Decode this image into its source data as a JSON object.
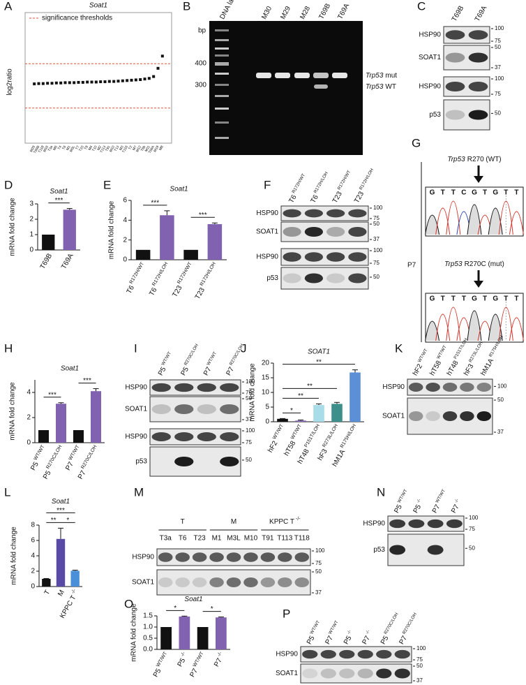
{
  "panel_labels": [
    "A",
    "B",
    "C",
    "D",
    "E",
    "F",
    "G",
    "H",
    "I",
    "J",
    "K",
    "L",
    "M",
    "N",
    "O",
    "P"
  ],
  "chart_data": [
    {
      "type": "scatter",
      "title": "Soat1",
      "y_label": "log2ratio",
      "legend": "significance thresholds",
      "thresholds": [
        0.6,
        -0.85
      ],
      "threshold_color": "#e0523a",
      "color": "#111111",
      "ylim": [
        -2,
        2
      ],
      "categories": [
        "M29",
        "T69B",
        "T118",
        "M16",
        "T3a",
        "M6",
        "T4",
        "T6",
        "M1",
        "M3L",
        "T7",
        "T23",
        "T9",
        "M4",
        "T10",
        "M2",
        "T113",
        "T91",
        "M10",
        "T13",
        "M3",
        "T116",
        "T2",
        "M7",
        "M12",
        "T6b",
        "M11",
        "T69A",
        "M19",
        "M8"
      ],
      "values": [
        -0.06,
        -0.05,
        -0.05,
        -0.04,
        -0.04,
        -0.03,
        -0.03,
        -0.02,
        -0.02,
        -0.02,
        -0.01,
        -0.01,
        0,
        0,
        0,
        0.01,
        0.01,
        0.02,
        0.02,
        0.03,
        0.04,
        0.05,
        0.06,
        0.07,
        0.08,
        0.1,
        0.12,
        0.18,
        0.45,
        0.85
      ]
    },
    {
      "type": "bar",
      "title": "Soat1",
      "y_label": "mRNA fold change",
      "categories": [
        "T69B",
        "T69A"
      ],
      "values": [
        1,
        2.62
      ],
      "errors": [
        0,
        0.08
      ],
      "colors": [
        "#111111",
        "#8062b0"
      ],
      "ylim": [
        0,
        3
      ],
      "yticks": [
        0,
        1,
        2,
        3
      ],
      "significance": [
        {
          "from": 0,
          "to": 1,
          "label": "***"
        }
      ]
    },
    {
      "type": "bar",
      "title": "Soat1",
      "y_label": "mRNA fold change",
      "categories": [
        {
          "name": "T6",
          "sup": "R172H/WT"
        },
        {
          "name": "T6",
          "sup": "R172H/LOH"
        },
        {
          "name": "T23",
          "sup": "R172H/WT"
        },
        {
          "name": "T23",
          "sup": "R172H/LOH"
        }
      ],
      "values": [
        1,
        4.5,
        1,
        3.6
      ],
      "errors": [
        0,
        0.45,
        0,
        0.12
      ],
      "colors": [
        "#111111",
        "#8062b0",
        "#111111",
        "#8062b0"
      ],
      "ylim": [
        0,
        6
      ],
      "yticks": [
        0,
        2,
        4,
        6
      ],
      "significance": [
        {
          "from": 0,
          "to": 1,
          "label": "***"
        },
        {
          "from": 2,
          "to": 3,
          "label": "***"
        }
      ]
    },
    {
      "type": "bar",
      "title": "Soat1",
      "y_label": "mRNA fold change",
      "categories": [
        {
          "name": "P5",
          "sup": "WT/WT"
        },
        {
          "name": "P5",
          "sup": "R270C/LOH"
        },
        {
          "name": "P7",
          "sup": "WT/WT"
        },
        {
          "name": "P7",
          "sup": "R270C/LOH"
        }
      ],
      "values": [
        1,
        3.1,
        1,
        4.1
      ],
      "errors": [
        0,
        0.08,
        0,
        0.2
      ],
      "colors": [
        "#111111",
        "#8062b0",
        "#111111",
        "#8062b0"
      ],
      "ylim": [
        0,
        5
      ],
      "yticks": [
        0,
        2,
        4
      ],
      "significance": [
        {
          "from": 0,
          "to": 1,
          "label": "***"
        },
        {
          "from": 2,
          "to": 3,
          "label": "***"
        }
      ]
    },
    {
      "type": "bar",
      "title": "SOAT1",
      "y_label": "mRNA fold change",
      "categories": [
        {
          "name": "hF2",
          "sup": "WT/WT"
        },
        {
          "name": "hT58",
          "sup": "WT/WT"
        },
        {
          "name": "hT48",
          "sup": "P151T/LOH"
        },
        {
          "name": "hF3",
          "sup": "R273L/LOH"
        },
        {
          "name": "hM1A",
          "sup": "R175H/LOH"
        }
      ],
      "values": [
        1,
        0.4,
        5.7,
        6.1,
        16.8
      ],
      "errors": [
        0.1,
        0.2,
        0.4,
        0.5,
        0.9
      ],
      "colors": [
        "#111111",
        "#8062b0",
        "#a9dce9",
        "#3d8f8b",
        "#5b8fd6"
      ],
      "ylim": [
        0,
        20
      ],
      "yticks": [
        0,
        5,
        10,
        15,
        20
      ],
      "significance": [
        {
          "from": 0,
          "to": 1,
          "label": "*"
        },
        {
          "from": 0,
          "to": 2,
          "label": "**"
        },
        {
          "from": 0,
          "to": 3,
          "label": "**"
        },
        {
          "from": 0,
          "to": 4,
          "label": "**"
        }
      ]
    },
    {
      "type": "bar",
      "title": "Soat1",
      "y_label": "mRNA fold change",
      "categories": [
        "T",
        "M",
        {
          "name": "KPPC T",
          "sup": "-/-"
        }
      ],
      "values": [
        1,
        6.2,
        2.05
      ],
      "errors": [
        0.05,
        1.4,
        0.08
      ],
      "colors": [
        "#111111",
        "#5a4aa8",
        "#4a90d9"
      ],
      "ylim": [
        0,
        8
      ],
      "yticks": [
        0,
        2,
        4,
        6,
        8
      ],
      "significance": [
        {
          "from": 0,
          "to": 1,
          "label": "**"
        },
        {
          "from": 1,
          "to": 2,
          "label": "*"
        },
        {
          "from": 0,
          "to": 2,
          "label": "***"
        }
      ]
    },
    {
      "type": "bar",
      "title": "Soat1",
      "y_label": "mRNA fold change",
      "categories": [
        {
          "name": "P5",
          "sup": "WT/WT"
        },
        {
          "name": "P5",
          "sup": "-/-"
        },
        {
          "name": "P7",
          "sup": "WT/WT"
        },
        {
          "name": "P7",
          "sup": "-/-"
        }
      ],
      "values": [
        1,
        1.47,
        1,
        1.43
      ],
      "errors": [
        0,
        0.02,
        0,
        0.02
      ],
      "colors": [
        "#111111",
        "#8062b0",
        "#111111",
        "#8062b0"
      ],
      "ylim": [
        0,
        1.5
      ],
      "yticks": [
        {
          "value": 0,
          "label": "0.0"
        },
        {
          "value": 0.5,
          "label": "0.5"
        },
        {
          "value": 1,
          "label": "1.0"
        },
        {
          "value": 1.5,
          "label": "1.5"
        }
      ],
      "significance": [
        {
          "from": 0,
          "to": 1,
          "label": "*"
        },
        {
          "from": 2,
          "to": 3,
          "label": "*"
        }
      ]
    }
  ],
  "gel": {
    "bp_label": "bp",
    "lanes": [
      "DNA ladder",
      "M30",
      "M29",
      "M28",
      "T69B",
      "T69A"
    ],
    "markers": [
      400,
      300
    ],
    "bands": [
      {
        "gene": "Trp53",
        "allele": "mut"
      },
      {
        "gene": "Trp53",
        "allele": "WT"
      }
    ]
  },
  "sequencing": {
    "sample": "P7",
    "wt": {
      "gene": "Trp53",
      "site": "R270 (WT)",
      "bases": [
        "G",
        "T",
        "T",
        "C",
        "G",
        "T",
        "G",
        "T",
        "T"
      ]
    },
    "mut": {
      "gene": "Trp53",
      "site": "R270C (mut)",
      "bases": [
        "G",
        "T",
        "T",
        "T",
        "G",
        "T",
        "G",
        "T",
        "T"
      ]
    }
  },
  "blots": [
    {
      "lanes": [
        "T69B",
        "T69A"
      ],
      "rows": [
        {
          "name": "HSP90",
          "markers": [
            100,
            75
          ]
        },
        {
          "name": "SOAT1",
          "markers": [
            50,
            37
          ]
        },
        {
          "name": "HSP90",
          "markers": [
            100,
            75
          ]
        },
        {
          "name": "p53",
          "markers": [
            50
          ]
        }
      ]
    },
    {
      "lanes": [
        {
          "name": "T6",
          "sup": "R172H/WT"
        },
        {
          "name": "T6",
          "sup": "R172H/LOH"
        },
        {
          "name": "T23",
          "sup": "R172H/WT"
        },
        {
          "name": "T23",
          "sup": "R172H/LOH"
        }
      ],
      "rows": [
        {
          "name": "HSP90",
          "markers": [
            100,
            75
          ]
        },
        {
          "name": "SOAT1",
          "markers": [
            50,
            37
          ]
        },
        {
          "name": "HSP90",
          "markers": [
            100,
            75
          ]
        },
        {
          "name": "p53",
          "markers": [
            50
          ]
        }
      ]
    },
    {
      "lanes": [
        {
          "name": "P5",
          "sup": "WT/WT"
        },
        {
          "name": "P5",
          "sup": "R270C/LOH"
        },
        {
          "name": "P7",
          "sup": "WT/WT"
        },
        {
          "name": "P7",
          "sup": "R270C/LOH"
        }
      ],
      "rows": [
        {
          "name": "HSP90",
          "markers": [
            100,
            75
          ]
        },
        {
          "name": "SOAT1",
          "markers": [
            50,
            37
          ]
        },
        {
          "name": "HSP90",
          "markers": [
            100,
            75
          ]
        },
        {
          "name": "p53",
          "markers": [
            50
          ]
        }
      ]
    },
    {
      "lanes": [
        {
          "name": "hF2",
          "sup": "WT/WT"
        },
        {
          "name": "hT58",
          "sup": "WT/WT"
        },
        {
          "name": "hT48",
          "sup": "P151T/LOH"
        },
        {
          "name": "hF3",
          "sup": "R273L/LOH"
        },
        {
          "name": "hM1A",
          "sup": "R175H/LOH"
        }
      ],
      "rows": [
        {
          "name": "HSP90",
          "markers": [
            100
          ]
        },
        {
          "name": "SOAT1",
          "markers": [
            50,
            37
          ]
        }
      ]
    },
    {
      "lanes": [
        "T3a",
        "T6",
        "T23",
        "M1",
        "M3L",
        "M10",
        "T91",
        "T113",
        "T118"
      ],
      "groups": [
        {
          "name": "T",
          "span": [
            0,
            2
          ]
        },
        {
          "name": "M",
          "span": [
            3,
            5
          ]
        },
        {
          "name": "KPPC T",
          "sup": "-/-",
          "span": [
            6,
            8
          ]
        }
      ],
      "rows": [
        {
          "name": "HSP90",
          "markers": [
            100,
            75
          ]
        },
        {
          "name": "SOAT1",
          "markers": [
            50,
            37
          ]
        }
      ]
    },
    {
      "lanes": [
        {
          "name": "P5",
          "sup": "WT/WT"
        },
        {
          "name": "P5",
          "sup": "-/-"
        },
        {
          "name": "P7",
          "sup": "WT/WT"
        },
        {
          "name": "P7",
          "sup": "-/-"
        }
      ],
      "rows": [
        {
          "name": "HSP90",
          "markers": [
            100,
            75
          ]
        },
        {
          "name": "p53",
          "markers": [
            50
          ]
        }
      ]
    },
    {
      "lanes": [
        {
          "name": "P5",
          "sup": "WT/WT"
        },
        {
          "name": "P7",
          "sup": "WT/WT"
        },
        {
          "name": "P5",
          "sup": "-/-"
        },
        {
          "name": "P7",
          "sup": "-/-"
        },
        {
          "name": "P5",
          "sup": "R270C/LOH"
        },
        {
          "name": "P7",
          "sup": "R270C/LOH"
        }
      ],
      "rows": [
        {
          "name": "HSP90",
          "markers": [
            100,
            75
          ]
        },
        {
          "name": "SOAT1",
          "markers": [
            50,
            37
          ]
        }
      ]
    }
  ]
}
